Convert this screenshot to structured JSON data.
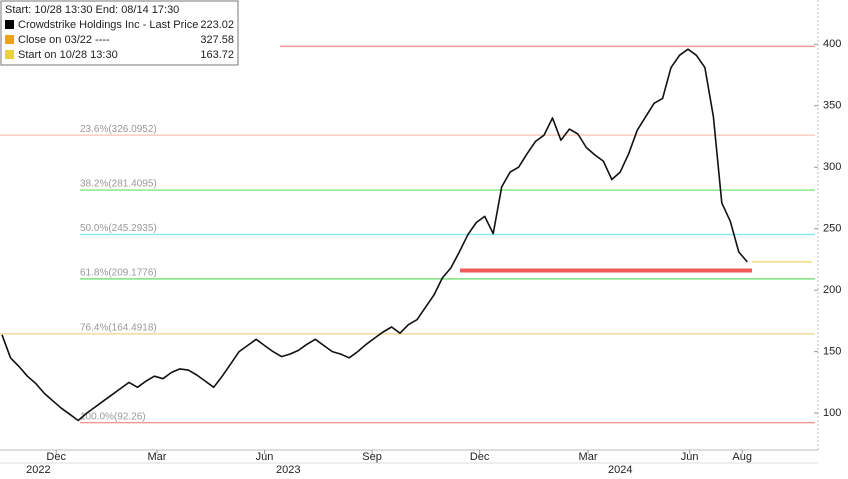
{
  "chart_data": {
    "type": "line",
    "legend_header": "Start: 10/28 13:30 End: 08/14 17:30",
    "legend": [
      {
        "name": "Crowdstrike Holdings Inc - Last Price",
        "value": 223.02,
        "color": "#000000"
      },
      {
        "name": "Close on 03/22 ----",
        "value": 327.58,
        "color": "#f0a020"
      },
      {
        "name": "Start on 10/28 13:30",
        "value": 163.72,
        "color": "#e8d040"
      }
    ],
    "series": [
      {
        "name": "Crowdstrike Holdings Inc - Last Price",
        "color": "#111111",
        "values": [
          163.72,
          145,
          138,
          130,
          124,
          116,
          110,
          104,
          99,
          94,
          100,
          105,
          110,
          115,
          120,
          125,
          121,
          126,
          130,
          128,
          133,
          136,
          135,
          131,
          126,
          121,
          130,
          140,
          150,
          155,
          160,
          155,
          150,
          146,
          148,
          151,
          156,
          160,
          155,
          150,
          148,
          145,
          150,
          156,
          161,
          166,
          170,
          165,
          172,
          176,
          186,
          196,
          210,
          218,
          231,
          245,
          255,
          260,
          246,
          284,
          296,
          300,
          311,
          321,
          326,
          340,
          322,
          331,
          327,
          316,
          310,
          305,
          290,
          296,
          311,
          330,
          341,
          352,
          356,
          381,
          391,
          396,
          391,
          381,
          341,
          271,
          256,
          231,
          223.02
        ]
      }
    ],
    "fib_levels": [
      {
        "label": "23.6%(326.0952)",
        "value": 326.0952,
        "color": "#f6cdbd"
      },
      {
        "label": "38.2%(281.4095)",
        "value": 281.4095,
        "color": "#8ce88c"
      },
      {
        "label": "50.0%(245.2935)",
        "value": 245.2935,
        "color": "#8eeaf0"
      },
      {
        "label": "61.8%(209.1776)",
        "value": 209.1776,
        "color": "#7ee07e"
      },
      {
        "label": "76.4%(164.4918)",
        "value": 164.4918,
        "color": "#eedc9c"
      },
      {
        "label": "100.0%(92.26)",
        "value": 92.26,
        "color": "#f29a9a"
      }
    ],
    "top_level": {
      "value": 398.33,
      "color": "#f29a9a"
    },
    "highlight_level": {
      "value": 216,
      "color": "#f05a5a"
    },
    "last_level": {
      "value": 223.02,
      "color": "#f0dc80"
    },
    "xlim": [
      0,
      96
    ],
    "ylim": [
      70,
      436
    ],
    "yticks": [
      100,
      150,
      200,
      250,
      300,
      350,
      400
    ],
    "xticks": [
      {
        "value": 6.4,
        "label": "Dec"
      },
      {
        "value": 18.3,
        "label": "Mar"
      },
      {
        "value": 31,
        "label": "Jun"
      },
      {
        "value": 43.7,
        "label": "Sep"
      },
      {
        "value": 56.4,
        "label": "Dec"
      },
      {
        "value": 69.2,
        "label": "Mar"
      },
      {
        "value": 81.2,
        "label": "Jun"
      },
      {
        "value": 87.4,
        "label": "Aug"
      }
    ],
    "year_ticks": [
      {
        "value": 4.3,
        "label": "2022"
      },
      {
        "value": 33.8,
        "label": "2023"
      },
      {
        "value": 73,
        "label": "2024"
      }
    ]
  }
}
